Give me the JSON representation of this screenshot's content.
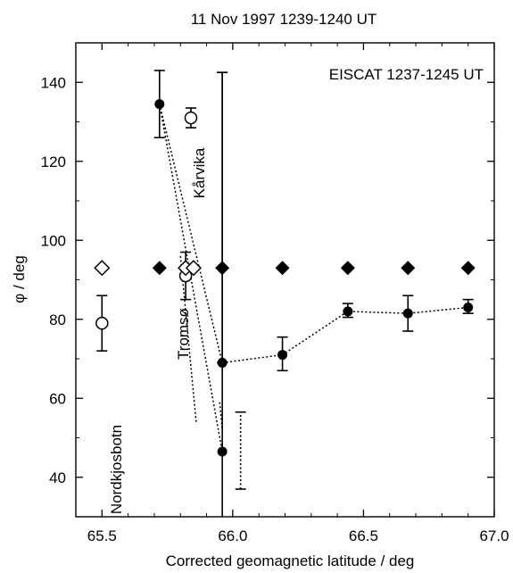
{
  "chart_data": {
    "type": "scatter",
    "title": "11 Nov 1997 1239-1240 UT",
    "annotation": "EISCAT 1237-1245 UT",
    "xlabel": "Corrected geomagnetic latitude / deg",
    "ylabel": "φ / deg",
    "xlim": [
      65.4,
      67.0
    ],
    "ylim": [
      30,
      150
    ],
    "xticks": [
      "65.5",
      "66.0",
      "66.5",
      "67.0"
    ],
    "yticks": [
      "40",
      "60",
      "80",
      "100",
      "120",
      "140"
    ],
    "grid": false,
    "station_labels": [
      "Nordkjosbotn",
      "Tromsø",
      "Kårvika"
    ],
    "series": [
      {
        "marker": "filled-circle",
        "x": [
          65.72,
          65.96,
          66.19,
          66.44,
          66.67,
          66.9
        ],
        "y": [
          134.5,
          69,
          71,
          82,
          81.5,
          83
        ],
        "yerr_low": [
          126,
          69,
          67,
          80.5,
          77,
          81.5
        ],
        "yerr_high": [
          143,
          142.5,
          75.5,
          84,
          86,
          85
        ],
        "connected": true
      },
      {
        "marker": "filled-circle",
        "x": [
          65.96
        ],
        "y": [
          46.5
        ],
        "yerr_low": [
          30
        ],
        "yerr_high": [
          142.5
        ],
        "connected": false
      },
      {
        "marker": "open-circle",
        "x": [
          65.5,
          65.82,
          65.84
        ],
        "y": [
          79,
          91,
          131
        ],
        "yerr_low": [
          72,
          85,
          128.5
        ],
        "yerr_high": [
          86,
          97,
          133.5
        ]
      },
      {
        "marker": "filled-diamond",
        "x": [
          65.72,
          65.96,
          66.19,
          66.44,
          66.67,
          66.9
        ],
        "y": [
          93,
          93,
          93,
          93,
          93,
          93
        ]
      },
      {
        "marker": "open-diamond",
        "x": [
          65.5,
          65.82,
          65.85
        ],
        "y": [
          93,
          93,
          93
        ]
      },
      {
        "marker": "dotted-errorbar",
        "x": [
          66.03
        ],
        "yerr_low": [
          37
        ],
        "yerr_high": [
          56.5
        ]
      }
    ],
    "dotted_lines": [
      {
        "x": [
          65.72,
          65.96
        ],
        "y": [
          134.5,
          69
        ]
      },
      {
        "x": [
          65.72,
          65.96
        ],
        "y": [
          134.5,
          46.5
        ]
      },
      {
        "x": [
          65.8,
          65.86
        ],
        "y": [
          96,
          54
        ]
      },
      {
        "x": [
          65.95,
          65.96
        ],
        "y": [
          59,
          52
        ]
      }
    ]
  }
}
